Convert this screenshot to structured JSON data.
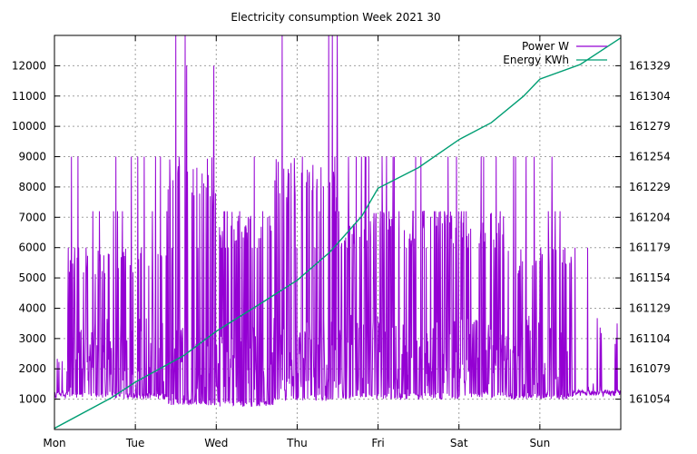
{
  "chart_data": {
    "type": "line",
    "title": "Electricity consumption Week 2021 30",
    "x_ticks": [
      "Mon",
      "Tue",
      "Wed",
      "Thu",
      "Fri",
      "Sat",
      "Sun"
    ],
    "x_range_days": [
      0,
      7
    ],
    "y_left_ticks": [
      1000,
      2000,
      3000,
      4000,
      5000,
      6000,
      7000,
      8000,
      9000,
      10000,
      11000,
      12000
    ],
    "y_left_range": [
      0,
      13000
    ],
    "y_right_ticks": [
      161054,
      161079,
      161104,
      161129,
      161154,
      161179,
      161204,
      161229,
      161254,
      161279,
      161304,
      161329
    ],
    "grid": true,
    "legend_position": "top-right",
    "series": [
      {
        "name": "Power W",
        "axis": "left",
        "color": "#9400d3",
        "baseline": 1100,
        "levels": [
          6000,
          7200,
          9000,
          12000,
          13000
        ],
        "envelope": [
          [
            0.0,
            0.15,
            1050,
            2600,
            0.1
          ],
          [
            0.15,
            0.75,
            1050,
            6000,
            0.55
          ],
          [
            0.75,
            1.4,
            1000,
            6000,
            0.5
          ],
          [
            1.4,
            2.0,
            800,
            9000,
            0.7
          ],
          [
            2.0,
            2.7,
            750,
            7200,
            0.6
          ],
          [
            2.7,
            3.5,
            950,
            9000,
            0.75
          ],
          [
            3.5,
            4.2,
            1000,
            7200,
            0.65
          ],
          [
            4.2,
            5.0,
            1000,
            7200,
            0.7
          ],
          [
            5.0,
            5.55,
            1050,
            7200,
            0.65
          ],
          [
            5.55,
            6.4,
            1000,
            6000,
            0.55
          ],
          [
            6.4,
            6.7,
            1100,
            1300,
            0.05
          ],
          [
            6.7,
            7.0,
            1100,
            3500,
            0.1
          ]
        ]
      },
      {
        "name": "Energy KWh",
        "axis": "right",
        "color": "#009e73",
        "points": [
          [
            0.0,
            161030
          ],
          [
            0.7,
            161055
          ],
          [
            1.0,
            161068
          ],
          [
            1.6,
            161090
          ],
          [
            2.0,
            161110
          ],
          [
            2.6,
            161135
          ],
          [
            3.0,
            161152
          ],
          [
            3.4,
            161175
          ],
          [
            3.8,
            161205
          ],
          [
            4.0,
            161228
          ],
          [
            4.5,
            161245
          ],
          [
            5.0,
            161268
          ],
          [
            5.4,
            161282
          ],
          [
            5.8,
            161304
          ],
          [
            6.0,
            161318
          ],
          [
            6.5,
            161330
          ],
          [
            7.0,
            161352
          ]
        ]
      }
    ]
  }
}
